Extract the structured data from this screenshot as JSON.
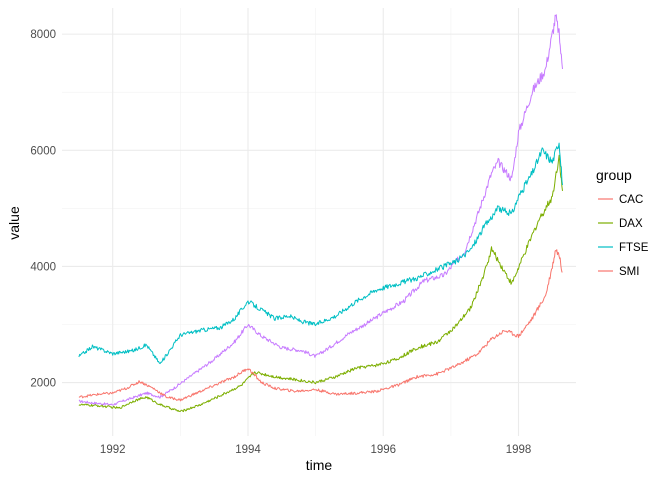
{
  "chart_data": {
    "type": "line",
    "xlabel": "time",
    "ylabel": "value",
    "xlim": [
      1991.25,
      1998.85
    ],
    "ylim": [
      1080,
      8450
    ],
    "x_ticks": [
      1992,
      1994,
      1996,
      1998
    ],
    "x_tick_labels": [
      "1992",
      "1994",
      "1996",
      "1998"
    ],
    "y_ticks": [
      2000,
      4000,
      6000,
      8000
    ],
    "y_tick_labels": [
      "2000",
      "4000",
      "6000",
      "8000"
    ],
    "grid": true,
    "legend": {
      "title": "group",
      "position": "right",
      "entries": [
        {
          "label": "CAC",
          "color": "#F8766D"
        },
        {
          "label": "DAX",
          "color": "#7CAE00"
        },
        {
          "label": "FTSE",
          "color": "#00BFC4"
        },
        {
          "label": "SMI",
          "color": "#F8766D"
        }
      ]
    },
    "series": [
      {
        "color": "#C77CFF",
        "x": [
          1991.5,
          1991.7,
          1992.0,
          1992.2,
          1992.5,
          1992.7,
          1992.9,
          1993.2,
          1993.5,
          1993.8,
          1994.0,
          1994.2,
          1994.5,
          1994.8,
          1995.0,
          1995.2,
          1995.5,
          1995.8,
          1996.0,
          1996.3,
          1996.6,
          1996.9,
          1997.2,
          1997.4,
          1997.6,
          1997.7,
          1997.9,
          1998.0,
          1998.2,
          1998.4,
          1998.5,
          1998.55,
          1998.6,
          1998.65
        ],
        "values": [
          1680,
          1650,
          1620,
          1700,
          1820,
          1750,
          1900,
          2150,
          2400,
          2700,
          3000,
          2800,
          2600,
          2550,
          2450,
          2600,
          2850,
          3050,
          3200,
          3400,
          3750,
          3850,
          4250,
          4900,
          5600,
          5800,
          5500,
          6300,
          7000,
          7400,
          8000,
          8300,
          8000,
          7400
        ]
      },
      {
        "color": "#7CAE00",
        "x": [
          1991.5,
          1991.8,
          1992.1,
          1992.3,
          1992.5,
          1992.7,
          1993.0,
          1993.3,
          1993.6,
          1993.9,
          1994.1,
          1994.4,
          1994.7,
          1995.0,
          1995.3,
          1995.6,
          1995.9,
          1996.2,
          1996.5,
          1996.8,
          1997.1,
          1997.3,
          1997.5,
          1997.6,
          1997.7,
          1997.9,
          1998.1,
          1998.3,
          1998.5,
          1998.6,
          1998.65
        ],
        "values": [
          1620,
          1600,
          1560,
          1680,
          1750,
          1620,
          1500,
          1620,
          1780,
          1950,
          2180,
          2100,
          2050,
          2000,
          2100,
          2250,
          2300,
          2400,
          2600,
          2700,
          3000,
          3300,
          3900,
          4300,
          4100,
          3700,
          4250,
          4800,
          5200,
          5900,
          5300
        ]
      },
      {
        "color": "#00BFC4",
        "x": [
          1991.5,
          1991.7,
          1992.0,
          1992.3,
          1992.5,
          1992.7,
          1993.0,
          1993.3,
          1993.6,
          1993.8,
          1994.0,
          1994.2,
          1994.4,
          1994.6,
          1994.8,
          1995.0,
          1995.3,
          1995.6,
          1995.9,
          1996.2,
          1996.5,
          1996.8,
          1997.1,
          1997.3,
          1997.5,
          1997.7,
          1997.9,
          1998.0,
          1998.2,
          1998.35,
          1998.5,
          1998.6,
          1998.65
        ],
        "values": [
          2450,
          2620,
          2500,
          2550,
          2650,
          2320,
          2820,
          2900,
          2950,
          3100,
          3400,
          3250,
          3100,
          3150,
          3050,
          3000,
          3150,
          3400,
          3600,
          3700,
          3800,
          3950,
          4100,
          4300,
          4700,
          5000,
          4900,
          5200,
          5600,
          6000,
          5800,
          6150,
          5400
        ]
      },
      {
        "color": "#F8766D",
        "x": [
          1991.5,
          1991.8,
          1992.0,
          1992.2,
          1992.4,
          1992.6,
          1992.8,
          1993.0,
          1993.2,
          1993.5,
          1993.8,
          1994.0,
          1994.2,
          1994.4,
          1994.7,
          1995.0,
          1995.3,
          1995.6,
          1995.9,
          1996.2,
          1996.5,
          1996.8,
          1997.1,
          1997.4,
          1997.6,
          1997.8,
          1998.0,
          1998.2,
          1998.4,
          1998.5,
          1998.55,
          1998.6,
          1998.65
        ],
        "values": [
          1750,
          1800,
          1820,
          1900,
          2020,
          1900,
          1750,
          1700,
          1800,
          1950,
          2100,
          2250,
          2000,
          1900,
          1850,
          1880,
          1800,
          1820,
          1850,
          1950,
          2100,
          2150,
          2300,
          2500,
          2750,
          2900,
          2800,
          3100,
          3500,
          4000,
          4300,
          4200,
          3900
        ]
      }
    ]
  }
}
